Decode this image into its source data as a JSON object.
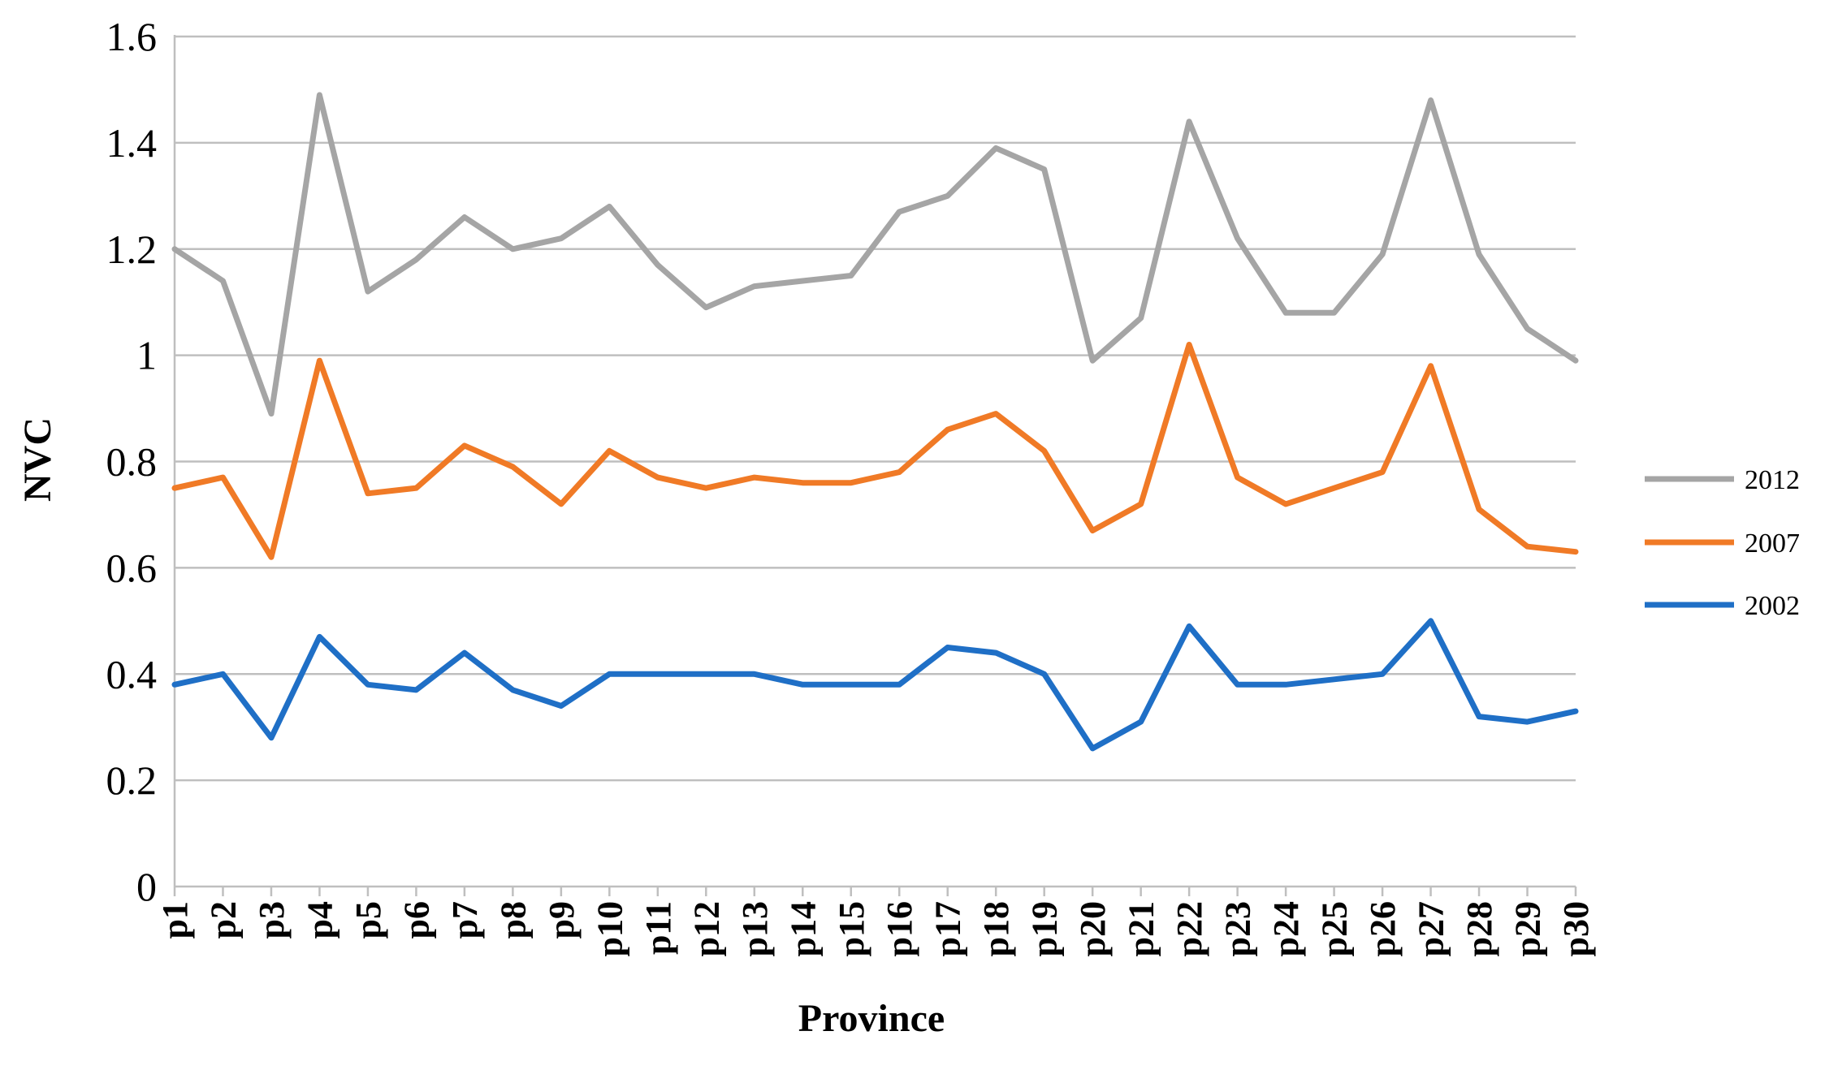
{
  "chart_data": {
    "type": "line",
    "xlabel": "Province",
    "ylabel": "NVC",
    "ylim": [
      0,
      1.6
    ],
    "yticks": [
      "0",
      "0.2",
      "0.4",
      "0.6",
      "0.8",
      "1",
      "1.2",
      "1.4",
      "1.6"
    ],
    "ytick_values": [
      0,
      0.2,
      0.4,
      0.6,
      0.8,
      1,
      1.2,
      1.4,
      1.6
    ],
    "grid": true,
    "legend_position": "right",
    "categories": [
      "p1",
      "p2",
      "p3",
      "p4",
      "p5",
      "p6",
      "p7",
      "p8",
      "p9",
      "p10",
      "p11",
      "p12",
      "p13",
      "p14",
      "p15",
      "p16",
      "p17",
      "p18",
      "p19",
      "p20",
      "p21",
      "p22",
      "p23",
      "p24",
      "p25",
      "p26",
      "p27",
      "p28",
      "p29",
      "p30"
    ],
    "series": [
      {
        "name": "2012",
        "color": "#a5a5a5",
        "values": [
          1.2,
          1.14,
          0.89,
          1.49,
          1.12,
          1.18,
          1.26,
          1.2,
          1.22,
          1.28,
          1.17,
          1.09,
          1.13,
          1.14,
          1.15,
          1.27,
          1.3,
          1.39,
          1.35,
          0.99,
          1.07,
          1.44,
          1.22,
          1.08,
          1.08,
          1.19,
          1.48,
          1.19,
          1.05,
          0.99
        ]
      },
      {
        "name": "2007",
        "color": "#f07a26",
        "values": [
          0.75,
          0.77,
          0.62,
          0.99,
          0.74,
          0.75,
          0.83,
          0.79,
          0.72,
          0.82,
          0.77,
          0.75,
          0.77,
          0.76,
          0.76,
          0.78,
          0.86,
          0.89,
          0.82,
          0.67,
          0.72,
          1.02,
          0.77,
          0.72,
          0.75,
          0.78,
          0.98,
          0.71,
          0.64,
          0.63
        ]
      },
      {
        "name": "2002",
        "color": "#1f6fc6",
        "values": [
          0.38,
          0.4,
          0.28,
          0.47,
          0.38,
          0.37,
          0.44,
          0.37,
          0.34,
          0.4,
          0.4,
          0.4,
          0.4,
          0.38,
          0.38,
          0.38,
          0.45,
          0.44,
          0.4,
          0.26,
          0.31,
          0.49,
          0.38,
          0.38,
          0.39,
          0.4,
          0.5,
          0.32,
          0.31,
          0.33
        ]
      }
    ],
    "axis_color": "#bfbfbf",
    "grid_color": "#bfbfbf"
  }
}
